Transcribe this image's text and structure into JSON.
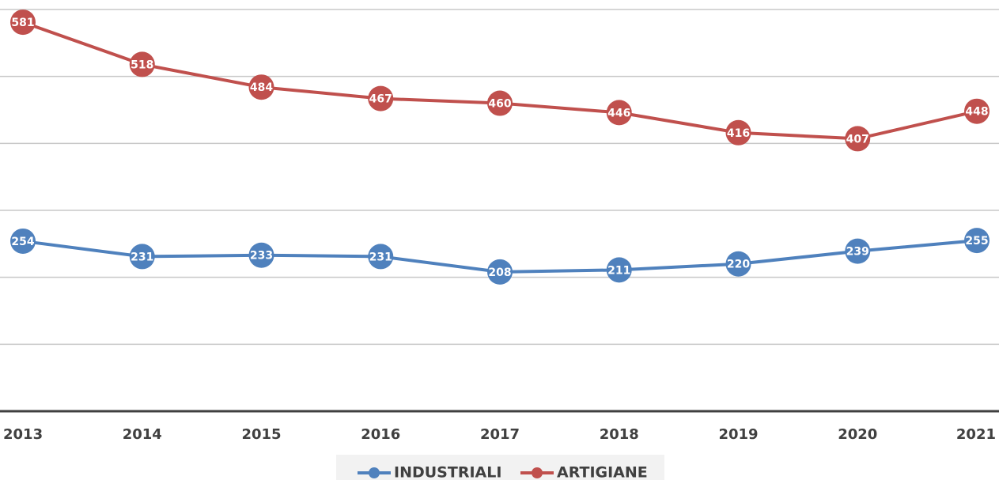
{
  "chart_data": {
    "type": "line",
    "categories": [
      "2013",
      "2014",
      "2015",
      "2016",
      "2017",
      "2018",
      "2019",
      "2020",
      "2021"
    ],
    "series": [
      {
        "name": "INDUSTRIALI",
        "color": "#4f81bd",
        "values": [
          254,
          231,
          233,
          231,
          208,
          211,
          220,
          239,
          255
        ]
      },
      {
        "name": "ARTIGIANE",
        "color": "#c0504d",
        "values": [
          581,
          518,
          484,
          467,
          460,
          446,
          416,
          407,
          448
        ]
      }
    ],
    "ylim": [
      0,
      600
    ],
    "yticks": [
      0,
      100,
      200,
      300,
      400,
      500,
      600
    ],
    "grid": true,
    "legend": "bottom"
  }
}
